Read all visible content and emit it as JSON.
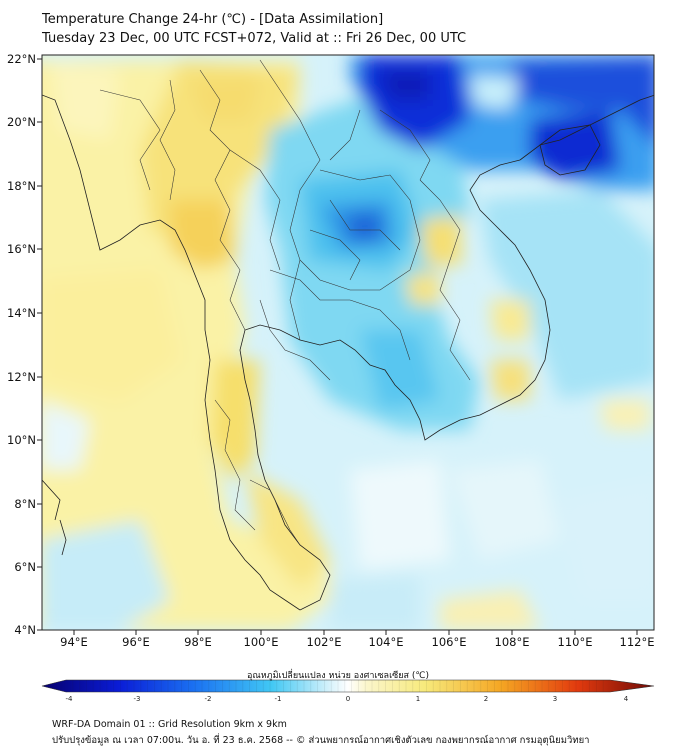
{
  "title": {
    "line1": "Temperature Change 24-hr (℃) - [Data Assimilation]",
    "line2": "Tuesday 23 Dec, 00 UTC FCST+072, Valid at :: Fri 26 Dec, 00 UTC"
  },
  "map": {
    "lat_labels": [
      "22°N",
      "20°N",
      "18°N",
      "16°N",
      "14°N",
      "12°N",
      "10°N",
      "8°N",
      "6°N",
      "4°N"
    ],
    "lon_labels": [
      "94°E",
      "96°E",
      "98°E",
      "100°E",
      "102°E",
      "104°E",
      "106°E",
      "108°E",
      "110°E",
      "112°E"
    ]
  },
  "colorbar": {
    "title": "อุณหภูมิเปลี่ยนแปลง หน่วย องศาเซลเซียส (℃)",
    "ticks": [
      "-4",
      "-3",
      "-2",
      "-1",
      "0",
      "1",
      "2",
      "3",
      "4"
    ],
    "min": -4,
    "max": 4
  },
  "footer": {
    "line1": "WRF-DA Domain 01 :: Grid Resolution 9km x 9km",
    "line2": "ปรับปรุงข้อมูล ณ เวลา 07:00น. วัน อ. ที่ 23 ธ.ค. 2568 -- © ส่วนพยากรณ์อากาศเชิงตัวเลข กองพยากรณ์อากาศ กรมอุตุนิยมวิทยา"
  }
}
